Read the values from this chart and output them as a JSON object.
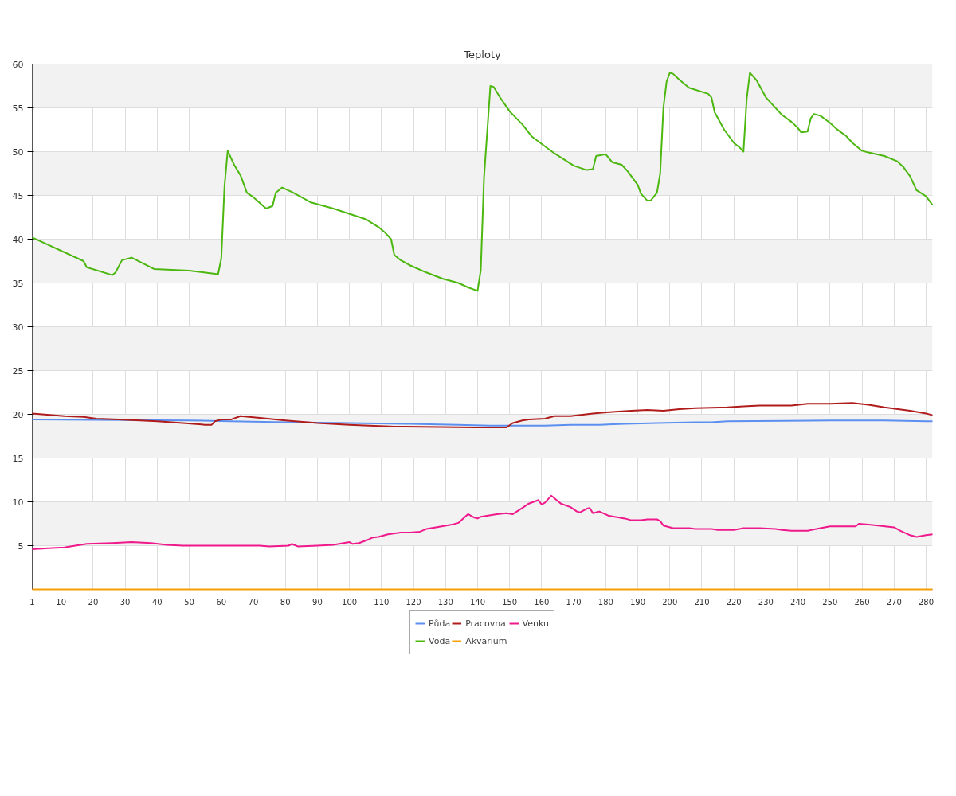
{
  "chart_data": {
    "type": "line",
    "title": "Teploty",
    "xlim": [
      1,
      282
    ],
    "xticks": [
      1,
      10,
      20,
      30,
      40,
      50,
      60,
      70,
      80,
      90,
      100,
      110,
      120,
      130,
      140,
      150,
      160,
      170,
      180,
      190,
      200,
      210,
      220,
      230,
      240,
      250,
      260,
      270,
      280
    ],
    "ylim": [
      0,
      60
    ],
    "yticks": [
      5,
      10,
      15,
      20,
      25,
      30,
      35,
      40,
      45,
      50,
      55,
      60
    ],
    "grid": true,
    "legend": "bottom",
    "marker": "none",
    "line_style": "solid",
    "series": [
      {
        "name": "Půda",
        "color": "#5b8ff0",
        "x": [
          1,
          50,
          63,
          80,
          100,
          119,
          134,
          144,
          161,
          169,
          178,
          186,
          196,
          208,
          213,
          218,
          250,
          267,
          280,
          282
        ],
        "values": [
          19.4,
          19.3,
          19.2,
          19.1,
          19.0,
          18.9,
          18.8,
          18.7,
          18.7,
          18.8,
          18.8,
          18.9,
          19.0,
          19.1,
          19.1,
          19.2,
          19.3,
          19.3,
          19.2,
          19.2
        ]
      },
      {
        "name": "Voda",
        "color": "#4cb70f",
        "x": [
          1,
          17,
          18,
          26,
          27,
          29,
          32,
          39,
          50,
          59,
          60,
          61,
          62,
          64,
          66,
          68,
          70,
          74,
          76,
          77,
          79,
          82,
          85,
          88,
          95,
          105,
          109,
          111,
          113,
          114,
          116,
          119,
          124,
          129,
          134,
          137,
          140,
          141,
          142,
          144,
          145,
          147,
          150,
          154,
          157,
          164,
          170,
          174,
          176,
          177,
          180,
          182,
          185,
          187,
          190,
          191,
          193,
          194,
          196,
          197,
          198,
          199,
          200,
          201,
          203,
          206,
          212,
          213,
          214,
          217,
          220,
          222,
          223,
          224,
          225,
          227,
          230,
          235,
          238,
          240,
          241,
          243,
          244,
          245,
          247,
          250,
          252,
          255,
          257,
          260,
          262,
          267,
          271,
          273,
          275,
          277,
          280,
          282
        ],
        "values": [
          40.2,
          37.5,
          36.8,
          35.9,
          36.2,
          37.6,
          37.9,
          36.6,
          36.4,
          36.0,
          37.8,
          46.0,
          50.1,
          48.5,
          47.3,
          45.3,
          44.8,
          43.5,
          43.8,
          45.3,
          45.9,
          45.4,
          44.8,
          44.2,
          43.5,
          42.3,
          41.4,
          40.8,
          40.0,
          38.2,
          37.6,
          37.0,
          36.2,
          35.5,
          35.0,
          34.5,
          34.1,
          36.5,
          47.0,
          57.5,
          57.4,
          56.2,
          54.6,
          53.1,
          51.7,
          49.8,
          48.4,
          47.9,
          48.0,
          49.5,
          49.7,
          48.8,
          48.5,
          47.7,
          46.2,
          45.2,
          44.4,
          44.4,
          45.3,
          47.5,
          55.0,
          58.0,
          59.0,
          58.9,
          58.2,
          57.3,
          56.6,
          56.2,
          54.5,
          52.5,
          51.0,
          50.4,
          50.0,
          56.0,
          59.0,
          58.2,
          56.2,
          54.2,
          53.4,
          52.7,
          52.2,
          52.3,
          53.8,
          54.3,
          54.1,
          53.3,
          52.6,
          51.8,
          51.0,
          50.1,
          49.9,
          49.5,
          48.9,
          48.2,
          47.2,
          45.6,
          44.9,
          43.9
        ]
      },
      {
        "name": "Pracovna",
        "color": "#b01c1c",
        "x": [
          1,
          11,
          17,
          21,
          28,
          40,
          48,
          55,
          57,
          58,
          60,
          63,
          66,
          72,
          80,
          90,
          100,
          114,
          139,
          149,
          151,
          154,
          156,
          161,
          164,
          169,
          176,
          183,
          188,
          193,
          198,
          203,
          208,
          218,
          223,
          228,
          238,
          243,
          250,
          257,
          262,
          267,
          275,
          280,
          282
        ],
        "values": [
          20.1,
          19.8,
          19.7,
          19.5,
          19.4,
          19.2,
          19.0,
          18.8,
          18.8,
          19.2,
          19.4,
          19.4,
          19.8,
          19.6,
          19.3,
          19.0,
          18.8,
          18.6,
          18.5,
          18.5,
          19.0,
          19.3,
          19.4,
          19.5,
          19.8,
          19.8,
          20.1,
          20.3,
          20.4,
          20.5,
          20.4,
          20.6,
          20.7,
          20.8,
          20.9,
          21.0,
          21.0,
          21.2,
          21.2,
          21.3,
          21.1,
          20.8,
          20.4,
          20.1,
          19.9
        ]
      },
      {
        "name": "Akvarium",
        "color": "#f5a000",
        "x": [
          1,
          282
        ],
        "values": [
          0,
          0
        ]
      },
      {
        "name": "Venku",
        "color": "#f0198c",
        "x": [
          1,
          6,
          11,
          16,
          18,
          26,
          32,
          38,
          43,
          48,
          55,
          65,
          72,
          75,
          81,
          82,
          84,
          90,
          95,
          100,
          101,
          103,
          106,
          107,
          109,
          112,
          116,
          119,
          122,
          124,
          127,
          132,
          134,
          137,
          139,
          140,
          141,
          146,
          149,
          151,
          154,
          156,
          159,
          160,
          161,
          163,
          166,
          169,
          171,
          172,
          174,
          175,
          176,
          178,
          181,
          186,
          188,
          191,
          193,
          196,
          197,
          198,
          201,
          203,
          206,
          208,
          213,
          215,
          220,
          223,
          228,
          233,
          235,
          238,
          243,
          247,
          250,
          255,
          258,
          259,
          262,
          265,
          270,
          272,
          275,
          277,
          280,
          282
        ],
        "values": [
          4.6,
          4.7,
          4.8,
          5.1,
          5.2,
          5.3,
          5.4,
          5.3,
          5.1,
          5.0,
          5.0,
          5.0,
          5.0,
          4.9,
          5.0,
          5.2,
          4.9,
          5.0,
          5.1,
          5.4,
          5.2,
          5.3,
          5.7,
          5.9,
          6.0,
          6.3,
          6.5,
          6.5,
          6.6,
          6.9,
          7.1,
          7.4,
          7.6,
          8.6,
          8.2,
          8.1,
          8.3,
          8.6,
          8.7,
          8.6,
          9.3,
          9.8,
          10.2,
          9.7,
          9.9,
          10.7,
          9.8,
          9.4,
          8.9,
          8.8,
          9.2,
          9.3,
          8.7,
          8.9,
          8.4,
          8.1,
          7.9,
          7.9,
          8.0,
          8.0,
          7.8,
          7.3,
          7.0,
          7.0,
          7.0,
          6.9,
          6.9,
          6.8,
          6.8,
          7.0,
          7.0,
          6.9,
          6.8,
          6.7,
          6.7,
          7.0,
          7.2,
          7.2,
          7.2,
          7.5,
          7.4,
          7.3,
          7.1,
          6.7,
          6.2,
          6.0,
          6.2,
          6.3
        ]
      }
    ]
  }
}
